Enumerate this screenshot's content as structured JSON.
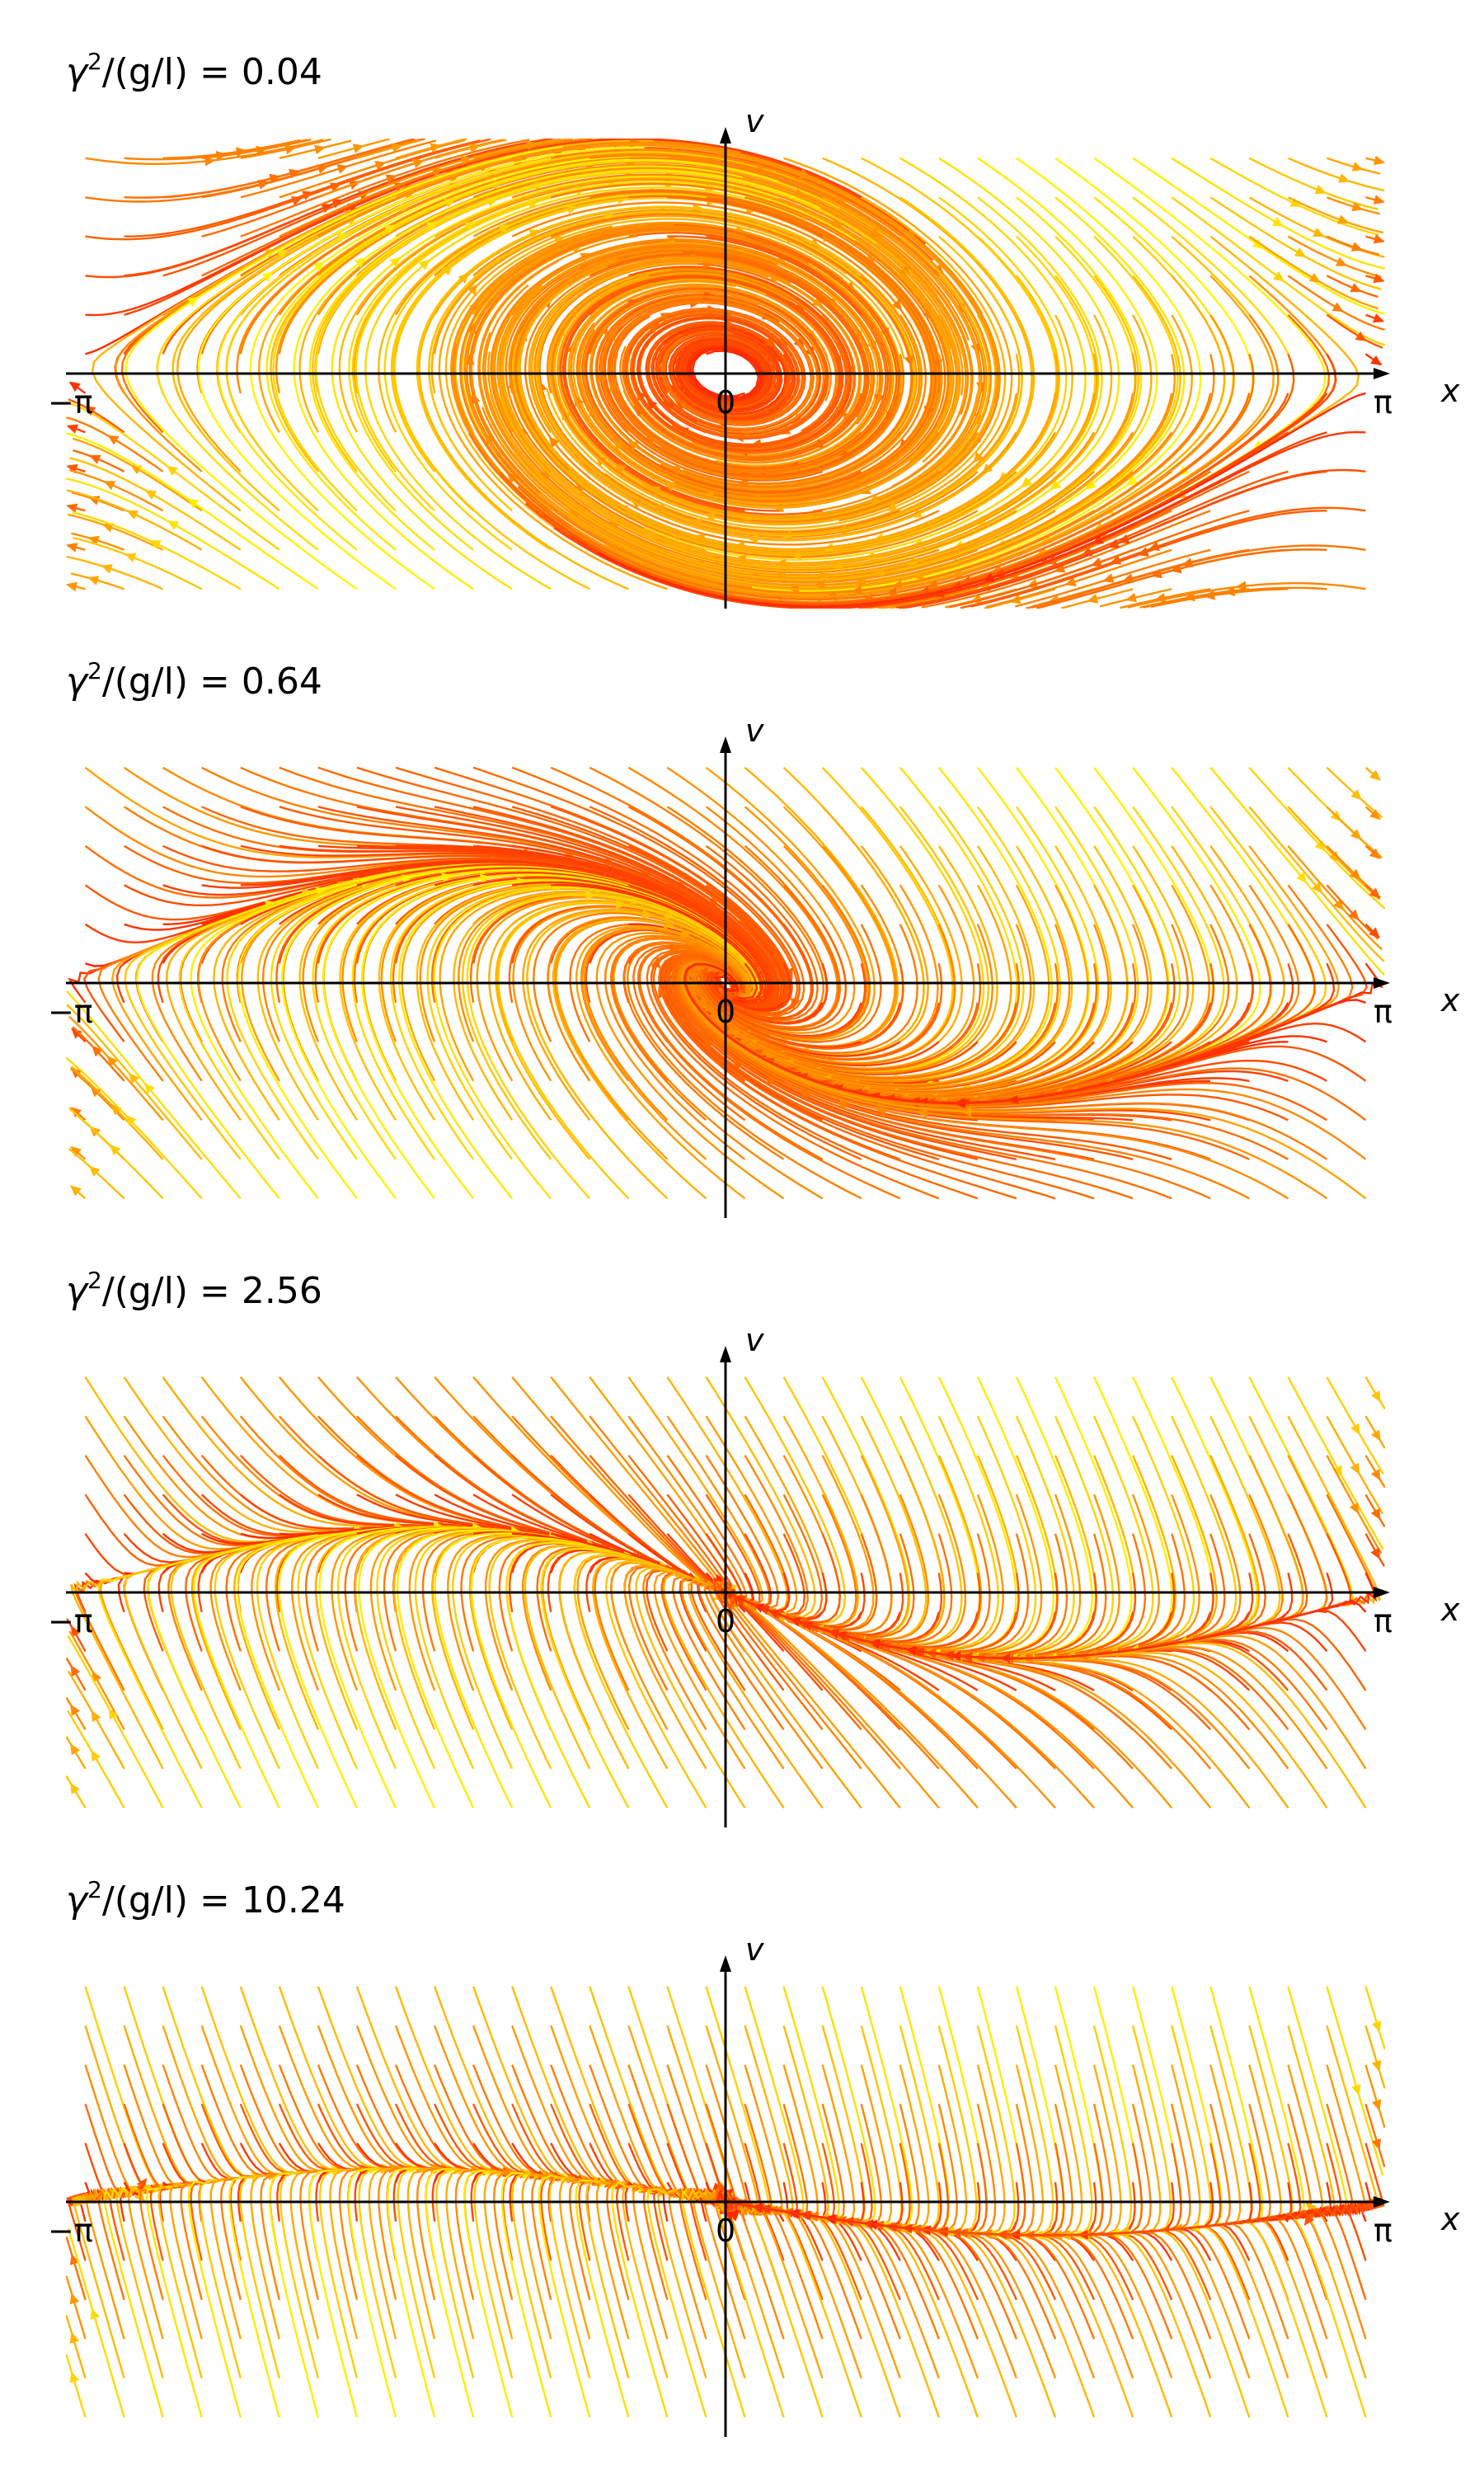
{
  "chart_data": [
    {
      "type": "streamplot",
      "title": "γ²/(g/l) = 0.04",
      "gamma_sq_over_g_l": 0.04,
      "xlabel": "x",
      "ylabel": "v",
      "xlim": [
        -3.14159,
        3.14159
      ],
      "ylim": [
        -1.1,
        1.1
      ],
      "x_ticks": [
        "−π",
        "0",
        "π"
      ],
      "colormap": "autumn (red→yellow by speed)"
    },
    {
      "type": "streamplot",
      "title": "γ²/(g/l) = 0.64",
      "gamma_sq_over_g_l": 0.64,
      "xlabel": "x",
      "ylabel": "v",
      "xlim": [
        -3.14159,
        3.14159
      ],
      "ylim": [
        -1.1,
        1.1
      ],
      "x_ticks": [
        "−π",
        "0",
        "π"
      ],
      "colormap": "autumn (red→yellow by speed)"
    },
    {
      "type": "streamplot",
      "title": "γ²/(g/l) = 2.56",
      "gamma_sq_over_g_l": 2.56,
      "xlabel": "x",
      "ylabel": "v",
      "xlim": [
        -3.14159,
        3.14159
      ],
      "ylim": [
        -1.1,
        1.1
      ],
      "x_ticks": [
        "−π",
        "0",
        "π"
      ],
      "colormap": "autumn (red→yellow by speed)"
    },
    {
      "type": "streamplot",
      "title": "γ²/(g/l) = 10.24",
      "gamma_sq_over_g_l": 10.24,
      "xlabel": "x",
      "ylabel": "v",
      "xlim": [
        -3.14159,
        3.14159
      ],
      "ylim": [
        -1.1,
        1.1
      ],
      "x_ticks": [
        "−π",
        "0",
        "π"
      ],
      "colormap": "autumn (red→yellow by speed)"
    }
  ],
  "panels": [
    {
      "title_prefix": "γ",
      "title_sup": "2",
      "title_mid": "/(g/l) = ",
      "title_value": "0.04"
    },
    {
      "title_prefix": "γ",
      "title_sup": "2",
      "title_mid": "/(g/l) = ",
      "title_value": "0.64"
    },
    {
      "title_prefix": "γ",
      "title_sup": "2",
      "title_mid": "/(g/l) = ",
      "title_value": "2.56"
    },
    {
      "title_prefix": "γ",
      "title_sup": "2",
      "title_mid": "/(g/l) = ",
      "title_value": "10.24"
    }
  ],
  "axes": {
    "x_label": "x",
    "y_label": "v",
    "tick_left": "−π",
    "tick_zero": "0",
    "tick_right": "π"
  }
}
